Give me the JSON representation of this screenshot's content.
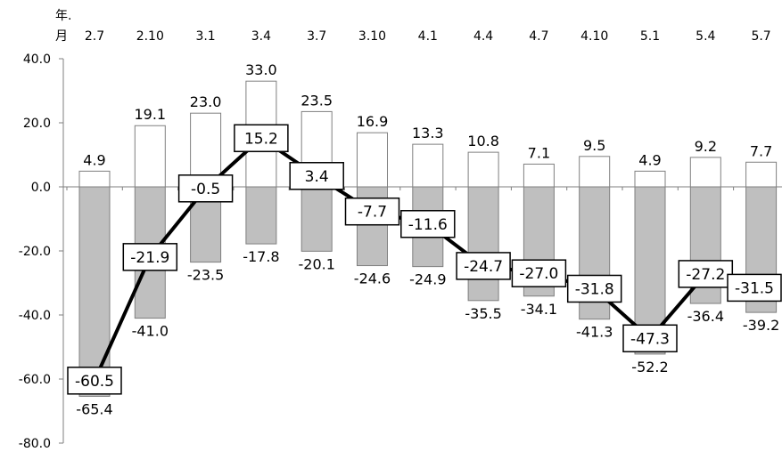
{
  "chart_data": {
    "type": "bar",
    "axis_unit_label": [
      "年.",
      "月"
    ],
    "categories": [
      "2.7",
      "2.10",
      "3.1",
      "3.4",
      "3.7",
      "3.10",
      "4.1",
      "4.4",
      "4.7",
      "4.10",
      "5.1",
      "5.4",
      "5.7"
    ],
    "series": [
      {
        "values": [
          4.9,
          19.1,
          23.0,
          33.0,
          23.5,
          16.9,
          13.3,
          10.8,
          7.1,
          9.5,
          4.9,
          9.2,
          7.7
        ],
        "color": "#ffffff",
        "kind": "bar"
      },
      {
        "values": [
          -65.4,
          -41.0,
          -23.5,
          -17.8,
          -20.1,
          -24.6,
          -24.9,
          -35.5,
          -34.1,
          -41.3,
          -52.2,
          -36.4,
          -39.2
        ],
        "color": "#bfbfbf",
        "kind": "bar"
      },
      {
        "values": [
          -60.5,
          -21.9,
          -0.5,
          15.2,
          3.4,
          -7.7,
          -11.6,
          -24.7,
          -27.0,
          -31.8,
          -47.3,
          -27.2,
          -31.5
        ],
        "color": "#000000",
        "kind": "line"
      }
    ],
    "ylim": [
      -80,
      40
    ],
    "yticks": [
      "40.0",
      "20.0",
      "0.0",
      "-20.0",
      "-40.0",
      "-60.0",
      "-80.0"
    ],
    "value_labels": {
      "positive": [
        "4.9",
        "19.1",
        "23.0",
        "33.0",
        "23.5",
        "16.9",
        "13.3",
        "10.8",
        "7.1",
        "9.5",
        "4.9",
        "9.2",
        "7.7"
      ],
      "negative": [
        "-65.4",
        "-41.0",
        "-23.5",
        "-17.8",
        "-20.1",
        "-24.6",
        "-24.9",
        "-35.5",
        "-34.1",
        "-41.3",
        "-52.2",
        "-36.4",
        "-39.2"
      ],
      "line": [
        "-60.5",
        "-21.9",
        "-0.5",
        "15.2",
        "3.4",
        "-7.7",
        "-11.6",
        "-24.7",
        "-27.0",
        "-31.8",
        "-47.3",
        "-27.2",
        "-31.5"
      ]
    },
    "grid": false,
    "legend": "none",
    "x_axis_position": "top"
  }
}
